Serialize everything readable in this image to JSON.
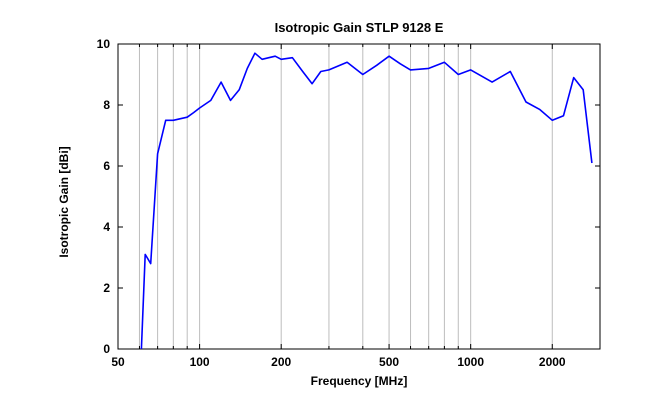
{
  "chart_data": {
    "type": "line",
    "title": "Isotropic Gain STLP 9128 E",
    "xlabel": "Frequency [MHz]",
    "ylabel": "Isotropic Gain [dBi]",
    "x_scale": "log",
    "xlim": [
      50,
      3000
    ],
    "ylim": [
      0,
      10
    ],
    "x_ticks": [
      50,
      100,
      200,
      500,
      1000,
      2000
    ],
    "x_tick_labels": [
      "50",
      "100",
      "200",
      "500",
      "1000",
      "2000"
    ],
    "x_minor_ticks": [
      60,
      70,
      80,
      90,
      300,
      400,
      600,
      700,
      800,
      900
    ],
    "y_ticks": [
      0,
      2,
      4,
      6,
      8,
      10
    ],
    "y_tick_labels": [
      "0",
      "2",
      "4",
      "6",
      "8",
      "10"
    ],
    "grid": true,
    "line_color": "#0000ff",
    "series": [
      {
        "x": [
          61,
          63,
          66,
          70,
          75,
          80,
          85,
          90,
          95,
          100,
          110,
          120,
          130,
          140,
          150,
          160,
          170,
          180,
          190,
          200,
          220,
          240,
          260,
          280,
          300,
          350,
          400,
          450,
          500,
          550,
          600,
          700,
          800,
          900,
          1000,
          1200,
          1400,
          1600,
          1800,
          2000,
          2200,
          2400,
          2600,
          2800
        ],
        "y": [
          0,
          3.1,
          2.8,
          6.4,
          7.5,
          7.5,
          7.55,
          7.6,
          7.75,
          7.9,
          8.15,
          8.75,
          8.15,
          8.5,
          9.2,
          9.7,
          9.5,
          9.55,
          9.6,
          9.5,
          9.55,
          9.1,
          8.7,
          9.1,
          9.15,
          9.4,
          9.0,
          9.3,
          9.6,
          9.35,
          9.15,
          9.2,
          9.4,
          9.0,
          9.15,
          8.75,
          9.1,
          8.1,
          7.85,
          7.5,
          7.65,
          8.9,
          8.5,
          6.1
        ]
      }
    ]
  }
}
